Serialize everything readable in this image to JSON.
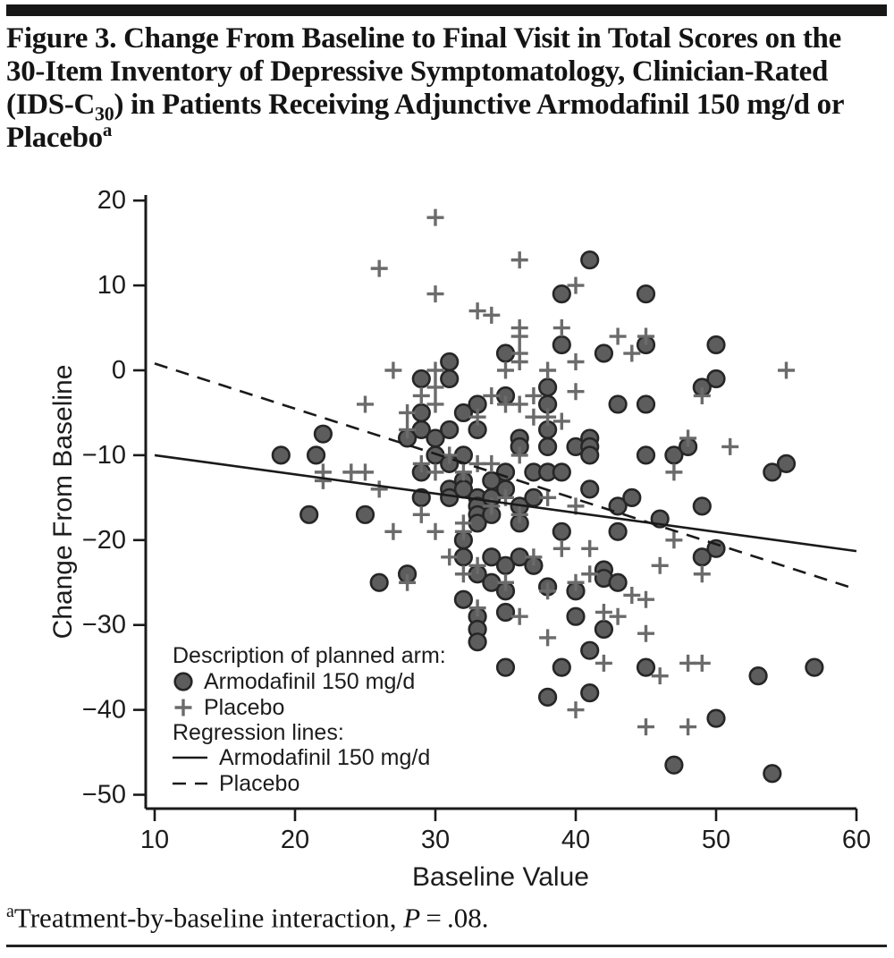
{
  "title": {
    "part1": "Figure 3. Change From Baseline to Final Visit in Total Scores on the 30-Item Inventory of Depressive Symptomatology, Clinician-Rated (IDS-C",
    "subscript": "30",
    "part2": ") in Patients Receiving Adjunctive Armodafinil 150 mg/d or Placebo",
    "superscript": "a"
  },
  "footnote": {
    "superscript": "a",
    "text": "Treatment-by-baseline interaction, ",
    "stat": "P",
    "rest": " = .08."
  },
  "chart_data": {
    "type": "scatter",
    "xlabel": "Baseline Value",
    "ylabel": "Change From Baseline",
    "xlim": [
      10,
      60
    ],
    "ylim": [
      -50,
      20
    ],
    "grid": false,
    "x_ticks": [
      10,
      20,
      30,
      40,
      50,
      60
    ],
    "x_tick_labels": [
      "10",
      "20",
      "30",
      "40",
      "50",
      "60"
    ],
    "y_ticks": [
      20,
      10,
      0,
      -10,
      -20,
      -30,
      -40,
      -50
    ],
    "y_tick_labels": [
      "20",
      "10",
      "0",
      "−10",
      "−20",
      "−30",
      "−40",
      "−50"
    ],
    "series": [
      {
        "name": "Armodafinil 150 mg/d",
        "marker": "circle",
        "color": "#5d5d5d",
        "points": [
          [
            19,
            -10
          ],
          [
            21.5,
            -10
          ],
          [
            22,
            -7.5
          ],
          [
            21,
            -17
          ],
          [
            25,
            -17
          ],
          [
            26,
            -25
          ],
          [
            28,
            -8
          ],
          [
            28,
            -24
          ],
          [
            29,
            -1
          ],
          [
            29,
            -5
          ],
          [
            29,
            -7
          ],
          [
            29,
            -12
          ],
          [
            29,
            -15
          ],
          [
            30,
            -8
          ],
          [
            30,
            -10
          ],
          [
            31,
            1
          ],
          [
            31,
            -1
          ],
          [
            31,
            -7
          ],
          [
            31,
            -11
          ],
          [
            31,
            -14
          ],
          [
            31,
            -15
          ],
          [
            32,
            -5
          ],
          [
            32,
            -10
          ],
          [
            32,
            -13
          ],
          [
            32,
            -14
          ],
          [
            32,
            -20
          ],
          [
            32,
            -22
          ],
          [
            32,
            -27
          ],
          [
            33,
            -4
          ],
          [
            33,
            -7
          ],
          [
            33,
            -15
          ],
          [
            33,
            -16
          ],
          [
            33,
            -17
          ],
          [
            33,
            -18
          ],
          [
            33,
            -24
          ],
          [
            33,
            -29
          ],
          [
            33,
            -30.5
          ],
          [
            33,
            -32
          ],
          [
            34,
            -13
          ],
          [
            34,
            -15
          ],
          [
            34,
            -17
          ],
          [
            34,
            -22
          ],
          [
            34,
            -25
          ],
          [
            35,
            2
          ],
          [
            35,
            -3
          ],
          [
            35,
            -12
          ],
          [
            35,
            -14
          ],
          [
            35,
            -23
          ],
          [
            35,
            -26
          ],
          [
            35,
            -28.5
          ],
          [
            35,
            -35
          ],
          [
            36,
            -8
          ],
          [
            36,
            -9
          ],
          [
            36,
            -16
          ],
          [
            36,
            -18
          ],
          [
            36,
            -22
          ],
          [
            37,
            -12
          ],
          [
            37,
            -15
          ],
          [
            37,
            -23
          ],
          [
            38,
            -2
          ],
          [
            38,
            -4
          ],
          [
            38,
            -7
          ],
          [
            38,
            -9
          ],
          [
            38,
            -12
          ],
          [
            38,
            -25.5
          ],
          [
            38,
            -38.5
          ],
          [
            39,
            3
          ],
          [
            39,
            9
          ],
          [
            39,
            -12
          ],
          [
            39,
            -19
          ],
          [
            39,
            -35
          ],
          [
            40,
            -9
          ],
          [
            40,
            -26
          ],
          [
            40,
            -29
          ],
          [
            41,
            13
          ],
          [
            41,
            -8
          ],
          [
            41,
            -9
          ],
          [
            41,
            -10
          ],
          [
            41,
            -14
          ],
          [
            41,
            -33
          ],
          [
            41,
            -38
          ],
          [
            42,
            2
          ],
          [
            42,
            -23.5
          ],
          [
            42,
            -24.5
          ],
          [
            42,
            -30.5
          ],
          [
            43,
            -4
          ],
          [
            43,
            -16
          ],
          [
            43,
            -19
          ],
          [
            43,
            -25
          ],
          [
            44,
            -15
          ],
          [
            45,
            9
          ],
          [
            45,
            3
          ],
          [
            45,
            -4
          ],
          [
            45,
            -10
          ],
          [
            45,
            -35
          ],
          [
            46,
            -17.5
          ],
          [
            47,
            -10
          ],
          [
            47,
            -46.5
          ],
          [
            48,
            -9
          ],
          [
            49,
            -2
          ],
          [
            49,
            -16
          ],
          [
            49,
            -22
          ],
          [
            50,
            3
          ],
          [
            50,
            -1
          ],
          [
            50,
            -21
          ],
          [
            50,
            -41
          ],
          [
            53,
            -36
          ],
          [
            54,
            -12
          ],
          [
            54,
            -47.5
          ],
          [
            55,
            -11
          ],
          [
            57,
            -35
          ]
        ]
      },
      {
        "name": "Placebo",
        "marker": "plus",
        "color": "#6b6b6b",
        "points": [
          [
            26,
            12
          ],
          [
            30,
            18
          ],
          [
            36,
            13
          ],
          [
            40,
            10
          ],
          [
            30,
            9
          ],
          [
            33,
            7
          ],
          [
            34,
            6.5
          ],
          [
            36,
            5
          ],
          [
            39,
            5
          ],
          [
            36,
            4
          ],
          [
            43,
            4
          ],
          [
            45,
            4
          ],
          [
            44,
            2
          ],
          [
            36,
            2
          ],
          [
            36,
            1
          ],
          [
            40,
            1
          ],
          [
            27,
            0
          ],
          [
            30,
            0
          ],
          [
            35,
            0
          ],
          [
            38,
            0
          ],
          [
            55,
            0
          ],
          [
            30,
            -2
          ],
          [
            40,
            -2.5
          ],
          [
            29,
            -3
          ],
          [
            34,
            -3
          ],
          [
            37,
            -3
          ],
          [
            49,
            -3
          ],
          [
            25,
            -4
          ],
          [
            30,
            -4
          ],
          [
            35,
            -4
          ],
          [
            36,
            -4
          ],
          [
            28,
            -5
          ],
          [
            33,
            -5.5
          ],
          [
            37,
            -5.5
          ],
          [
            38,
            -5.5
          ],
          [
            39,
            -6
          ],
          [
            28,
            -7
          ],
          [
            48,
            -8
          ],
          [
            51,
            -9
          ],
          [
            31,
            -10
          ],
          [
            36,
            -10
          ],
          [
            29,
            -11
          ],
          [
            33,
            -11
          ],
          [
            34,
            -11
          ],
          [
            22,
            -12
          ],
          [
            24,
            -12
          ],
          [
            25,
            -12
          ],
          [
            30,
            -12
          ],
          [
            32,
            -12
          ],
          [
            47,
            -12
          ],
          [
            22,
            -13
          ],
          [
            26,
            -14
          ],
          [
            35,
            -15
          ],
          [
            38,
            -15
          ],
          [
            34,
            -16
          ],
          [
            40,
            -16
          ],
          [
            29,
            -17
          ],
          [
            36,
            -17
          ],
          [
            32,
            -18
          ],
          [
            27,
            -19
          ],
          [
            30,
            -19
          ],
          [
            32,
            -19
          ],
          [
            47,
            -20
          ],
          [
            39,
            -21
          ],
          [
            41,
            -21
          ],
          [
            31,
            -22
          ],
          [
            37,
            -22
          ],
          [
            33,
            -23
          ],
          [
            46,
            -23
          ],
          [
            32,
            -24
          ],
          [
            41,
            -24
          ],
          [
            49,
            -24
          ],
          [
            28,
            -25
          ],
          [
            35,
            -25
          ],
          [
            40,
            -25
          ],
          [
            38,
            -26
          ],
          [
            44,
            -26.5
          ],
          [
            45,
            -27
          ],
          [
            33,
            -28
          ],
          [
            42,
            -28.5
          ],
          [
            36,
            -29
          ],
          [
            43,
            -29
          ],
          [
            45,
            -31
          ],
          [
            38,
            -31.5
          ],
          [
            42,
            -34.5
          ],
          [
            48,
            -34.5
          ],
          [
            49,
            -34.5
          ],
          [
            46,
            -36
          ],
          [
            40,
            -40
          ],
          [
            45,
            -42
          ],
          [
            48,
            -42
          ]
        ]
      }
    ],
    "regression_lines": [
      {
        "name": "Armodafinil 150 mg/d",
        "style": "solid",
        "x": [
          10,
          60
        ],
        "y": [
          -10,
          -21.3
        ]
      },
      {
        "name": "Placebo",
        "style": "dashed",
        "x": [
          10,
          60
        ],
        "y": [
          0.8,
          -25.8
        ]
      }
    ],
    "legend": {
      "position": "lower-left",
      "marker_section_title": "Description of planned arm:",
      "marker_items": [
        {
          "marker": "circle",
          "label": "Armodafinil 150 mg/d"
        },
        {
          "marker": "plus",
          "label": "Placebo"
        }
      ],
      "line_section_title": "Regression lines:",
      "line_items": [
        {
          "style": "solid",
          "label": "Armodafinil 150 mg/d"
        },
        {
          "style": "dashed",
          "label": "Placebo"
        }
      ]
    },
    "colors": {
      "circle_fill": "#5d5d5d",
      "circle_stroke": "#262626",
      "plus_stroke": "#6b6b6b",
      "line_color": "#1a1a1a"
    }
  }
}
